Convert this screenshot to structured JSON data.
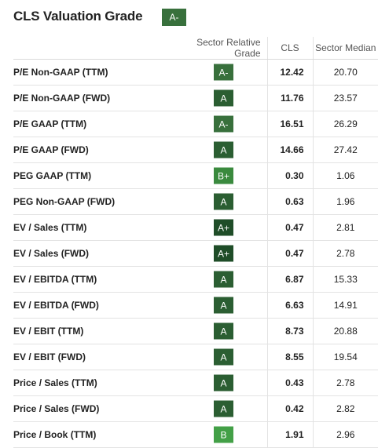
{
  "title": "CLS Valuation Grade",
  "overall_grade": "A-",
  "columns": {
    "metric": "",
    "grade": "Sector Relative Grade",
    "cls": "CLS",
    "median": "Sector Median"
  },
  "grade_colors": {
    "A+": "#1f4d28",
    "A": "#2b5e32",
    "A-": "#38703c",
    "B+": "#3a8a3e",
    "B": "#43a047"
  },
  "rows": [
    {
      "metric": "P/E Non-GAAP (TTM)",
      "grade": "A-",
      "cls": "12.42",
      "median": "20.70"
    },
    {
      "metric": "P/E Non-GAAP (FWD)",
      "grade": "A",
      "cls": "11.76",
      "median": "23.57"
    },
    {
      "metric": "P/E GAAP (TTM)",
      "grade": "A-",
      "cls": "16.51",
      "median": "26.29"
    },
    {
      "metric": "P/E GAAP (FWD)",
      "grade": "A",
      "cls": "14.66",
      "median": "27.42"
    },
    {
      "metric": "PEG GAAP (TTM)",
      "grade": "B+",
      "cls": "0.30",
      "median": "1.06"
    },
    {
      "metric": "PEG Non-GAAP (FWD)",
      "grade": "A",
      "cls": "0.63",
      "median": "1.96"
    },
    {
      "metric": "EV / Sales (TTM)",
      "grade": "A+",
      "cls": "0.47",
      "median": "2.81"
    },
    {
      "metric": "EV / Sales (FWD)",
      "grade": "A+",
      "cls": "0.47",
      "median": "2.78"
    },
    {
      "metric": "EV / EBITDA (TTM)",
      "grade": "A",
      "cls": "6.87",
      "median": "15.33"
    },
    {
      "metric": "EV / EBITDA (FWD)",
      "grade": "A",
      "cls": "6.63",
      "median": "14.91"
    },
    {
      "metric": "EV / EBIT (TTM)",
      "grade": "A",
      "cls": "8.73",
      "median": "20.88"
    },
    {
      "metric": "EV / EBIT (FWD)",
      "grade": "A",
      "cls": "8.55",
      "median": "19.54"
    },
    {
      "metric": "Price / Sales (TTM)",
      "grade": "A",
      "cls": "0.43",
      "median": "2.78"
    },
    {
      "metric": "Price / Sales (FWD)",
      "grade": "A",
      "cls": "0.42",
      "median": "2.82"
    },
    {
      "metric": "Price / Book (TTM)",
      "grade": "B",
      "cls": "1.91",
      "median": "2.96"
    }
  ]
}
